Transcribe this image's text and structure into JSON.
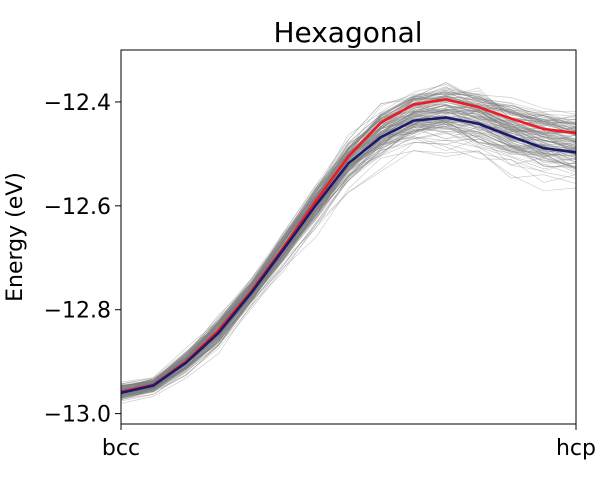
{
  "chart_data": {
    "type": "line",
    "title": "Hexagonal",
    "xlabel": "",
    "ylabel": "Energy (eV)",
    "x_tick_labels": [
      "bcc",
      "hcp"
    ],
    "x": [
      0,
      0.071,
      0.143,
      0.214,
      0.286,
      0.357,
      0.429,
      0.5,
      0.571,
      0.643,
      0.714,
      0.786,
      0.857,
      0.929,
      1.0
    ],
    "xlim": [
      0,
      1
    ],
    "ylim": [
      -13.02,
      -12.3
    ],
    "yticks": [
      -13.0,
      -12.8,
      -12.6,
      -12.4
    ],
    "y_tick_labels": [
      "−13.0",
      "−12.8",
      "−12.6",
      "−12.4"
    ],
    "grid": false,
    "series": [
      {
        "color": "#ed1c24",
        "values": [
          -12.958,
          -12.945,
          -12.9,
          -12.84,
          -12.765,
          -12.68,
          -12.59,
          -12.505,
          -12.44,
          -12.405,
          -12.395,
          -12.41,
          -12.432,
          -12.452,
          -12.46
        ]
      },
      {
        "color": "#1a1a6e",
        "values": [
          -12.96,
          -12.946,
          -12.902,
          -12.845,
          -12.768,
          -12.684,
          -12.598,
          -12.518,
          -12.468,
          -12.436,
          -12.43,
          -12.442,
          -12.466,
          -12.489,
          -12.497
        ]
      }
    ],
    "ensemble": {
      "color": "#7f7f7f",
      "count": 140,
      "center": [
        -12.959,
        -12.946,
        -12.901,
        -12.843,
        -12.767,
        -12.683,
        -12.596,
        -12.515,
        -12.46,
        -12.428,
        -12.42,
        -12.432,
        -12.455,
        -12.474,
        -12.482
      ],
      "spread": [
        0.008,
        0.007,
        0.01,
        0.014,
        0.012,
        0.016,
        0.018,
        0.021,
        0.024,
        0.026,
        0.028,
        0.03,
        0.03,
        0.03,
        0.03
      ]
    }
  }
}
